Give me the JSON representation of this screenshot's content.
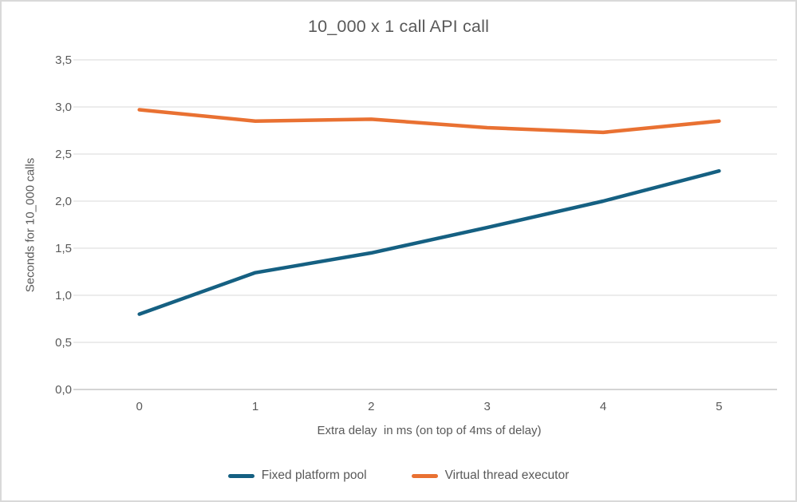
{
  "chart_data": {
    "type": "line",
    "title": "10_000 x 1 call API call",
    "xlabel": "Extra delay  in ms (on top of 4ms of delay)",
    "ylabel": "Seconds for 10_000 calls",
    "categories": [
      "0",
      "1",
      "2",
      "3",
      "4",
      "5"
    ],
    "series": [
      {
        "name": "Fixed platform pool",
        "color": "#156082",
        "values": [
          0.8,
          1.24,
          1.45,
          1.72,
          2.0,
          2.32
        ]
      },
      {
        "name": "Virtual thread executor",
        "color": "#E97132",
        "values": [
          2.97,
          2.85,
          2.87,
          2.78,
          2.73,
          2.85
        ]
      }
    ],
    "ylim": [
      0,
      3.5
    ],
    "ytick_step": 0.5,
    "ytick_labels": [
      "0,0",
      "0,5",
      "1,0",
      "1,5",
      "2,0",
      "2,5",
      "3,0",
      "3,5"
    ],
    "grid": true,
    "legend_position": "bottom",
    "colors": {
      "grid": "#d9d9d9",
      "axis": "#c6c6c6",
      "text": "#595959",
      "background": "#ffffff",
      "frame_border": "#d9d9d9"
    }
  }
}
